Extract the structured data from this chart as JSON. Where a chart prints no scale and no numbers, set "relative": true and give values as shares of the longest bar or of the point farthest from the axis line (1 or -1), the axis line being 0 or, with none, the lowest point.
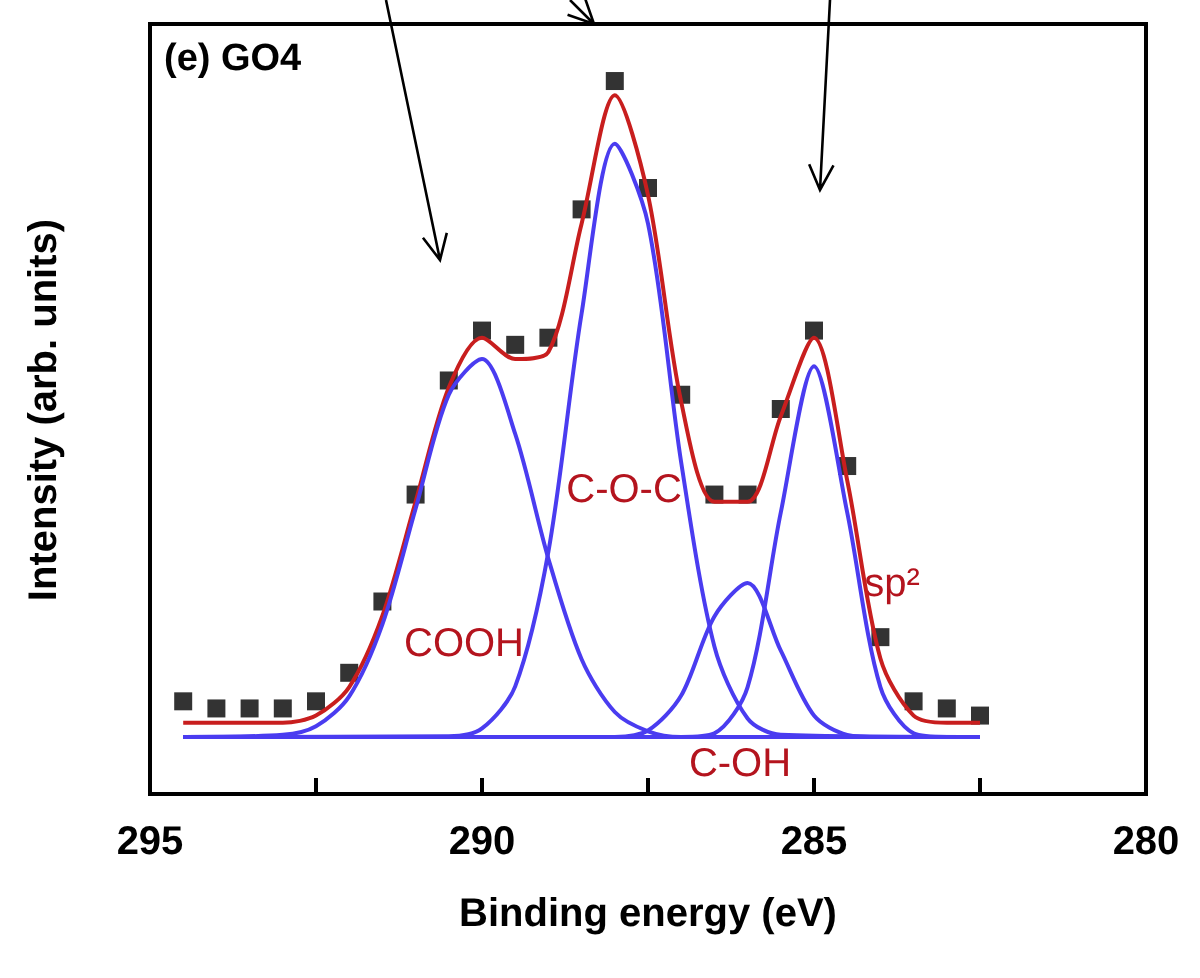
{
  "chart_data": {
    "type": "line",
    "xlabel": "Binding energy (eV)",
    "ylabel": "Intensity (arb. units)",
    "relative": true,
    "xlim": [
      295,
      280
    ],
    "xticks": [
      295,
      {
        "value": 292.5,
        "label": null
      },
      290,
      {
        "value": 287.5,
        "label": null
      },
      285,
      {
        "value": 282.5,
        "label": null
      },
      280
    ],
    "annotations": [
      "(e) GO4",
      "COOH",
      "C-O-C",
      "C-OH",
      "sp²"
    ],
    "series": [
      {
        "type": "scatter",
        "marker": "square",
        "color": "#000000",
        "x": [
          294.5,
          294,
          293.5,
          293,
          292.5,
          292,
          291.5,
          291,
          290.5,
          290,
          289.5,
          289,
          288.5,
          288,
          287.5,
          287,
          286.5,
          286,
          285.5,
          285,
          284.5,
          284,
          283.5,
          283,
          282.5
        ],
        "values": [
          0.13,
          0.12,
          0.12,
          0.12,
          0.13,
          0.17,
          0.27,
          0.42,
          0.58,
          0.65,
          0.63,
          0.64,
          0.82,
          1.0,
          0.85,
          0.56,
          0.42,
          0.42,
          0.54,
          0.65,
          0.46,
          0.22,
          0.13,
          0.12,
          0.11
        ]
      },
      {
        "marker": "none",
        "color": "#c81e1e",
        "x": [
          294.5,
          294,
          293.5,
          293,
          292.5,
          292,
          291.5,
          291,
          290.5,
          290,
          289.5,
          289,
          288.5,
          288,
          287.5,
          287,
          286.5,
          286,
          285.5,
          285,
          284.5,
          284,
          283.5,
          283,
          282.5
        ],
        "values": [
          0.1,
          0.1,
          0.1,
          0.1,
          0.11,
          0.15,
          0.25,
          0.41,
          0.57,
          0.64,
          0.61,
          0.62,
          0.8,
          0.98,
          0.84,
          0.55,
          0.41,
          0.41,
          0.53,
          0.64,
          0.44,
          0.19,
          0.11,
          0.1,
          0.1
        ]
      },
      {
        "marker": "none",
        "color": "#4a3cf0",
        "x": [
          294.5,
          293,
          292.5,
          292,
          291.5,
          291,
          290.5,
          290,
          289.5,
          289,
          288.5,
          288,
          287.5,
          287,
          282.5
        ],
        "values": [
          0.08,
          0.083,
          0.095,
          0.137,
          0.238,
          0.4,
          0.56,
          0.61,
          0.505,
          0.33,
          0.189,
          0.115,
          0.088,
          0.08,
          0.08
        ]
      },
      {
        "marker": "none",
        "color": "#4a3cf0",
        "x": [
          294.5,
          290.5,
          290,
          289.5,
          289,
          288.5,
          288,
          287.5,
          287,
          286.5,
          286,
          285.5,
          282.5
        ],
        "values": [
          0.08,
          0.081,
          0.092,
          0.151,
          0.34,
          0.674,
          0.912,
          0.8,
          0.465,
          0.207,
          0.106,
          0.083,
          0.08
        ]
      },
      {
        "marker": "none",
        "color": "#4a3cf0",
        "x": [
          294.5,
          288,
          287.5,
          287,
          286.5,
          286,
          285.5,
          285,
          284.5,
          284,
          282.5
        ],
        "values": [
          0.08,
          0.08,
          0.089,
          0.138,
          0.249,
          0.296,
          0.201,
          0.11,
          0.083,
          0.08,
          0.08
        ]
      },
      {
        "marker": "none",
        "color": "#4a3cf0",
        "x": [
          294.5,
          287,
          286.5,
          286,
          285.5,
          285,
          284.5,
          284,
          283.5,
          283,
          282.5
        ],
        "values": [
          0.08,
          0.08,
          0.085,
          0.15,
          0.395,
          0.6,
          0.395,
          0.15,
          0.085,
          0.08,
          0.08
        ]
      }
    ]
  }
}
